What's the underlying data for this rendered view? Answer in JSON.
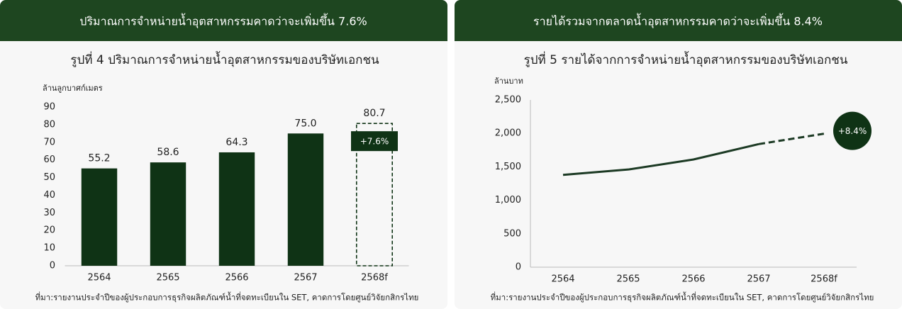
{
  "chart_data": [
    {
      "type": "bar",
      "header": "ปริมาณการจำหน่ายน้ำอุตสาหกรรมคาดว่าจะเพิ่มขึ้น 7.6%",
      "title": "รูปที่ 4 ปริมาณการจำหน่ายน้ำอุตสาหกรรมของบริษัทเอกชน",
      "y_label": "ล้านลูกบาศก์เมตร",
      "categories": [
        "2564",
        "2565",
        "2566",
        "2567",
        "2568f"
      ],
      "values": [
        55.2,
        58.6,
        64.3,
        75.0,
        80.7
      ],
      "value_labels": [
        "55.2",
        "58.6",
        "64.3",
        "75.0",
        "80.7"
      ],
      "dashed": [
        false,
        false,
        false,
        false,
        true
      ],
      "color": "#0f3315",
      "ylim": [
        0,
        90
      ],
      "yticks": [
        0,
        10,
        20,
        30,
        40,
        50,
        60,
        70,
        80,
        90
      ],
      "annotation": "+7.6%",
      "source": "ที่มา:รายงานประจำปีของผู้ประกอบการธุรกิจผลิตภัณฑ์น้ำที่จดทะเบียนใน SET, คาดการโดยศูนย์วิจัยกสิกรไทย"
    },
    {
      "type": "line",
      "header": "รายได้รวมจากตลาดน้ำอุตสาหกรรมคาดว่าจะเพิ่มขึ้น 8.4%",
      "title": "รูปที่ 5 รายได้จากการจำหน่ายน้ำอุตสาหกรรมของบริษัทเอกชน",
      "y_label": "ล้านบาท",
      "categories": [
        "2564",
        "2565",
        "2566",
        "2567",
        "2568f"
      ],
      "values": [
        1380,
        1460,
        1610,
        1840,
        1995
      ],
      "dashed": [
        false,
        false,
        false,
        false,
        true
      ],
      "color": "#1c3a24",
      "ylim": [
        0,
        2500
      ],
      "yticks": [
        0,
        500,
        {
          "value": 1000,
          "label": "1,000"
        },
        {
          "value": 1500,
          "label": "1,500"
        },
        {
          "value": 2000,
          "label": "2,000"
        },
        {
          "value": 2500,
          "label": "2,500"
        }
      ],
      "annotation": "+8.4%",
      "source": "ที่มา:รายงานประจำปีของผู้ประกอบการธุรกิจผลิตภัณฑ์น้ำที่จดทะเบียนใน SET, คาดการโดยศูนย์วิจัยกสิกรไทย"
    }
  ]
}
